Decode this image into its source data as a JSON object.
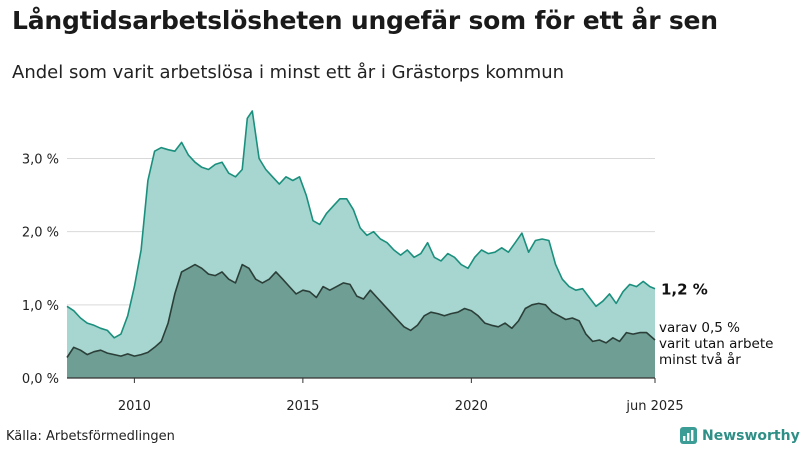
{
  "header": {
    "title": "Långtidsarbetslösheten ungefär som för ett år sen",
    "subtitle": "Andel som varit arbetslösa i minst ett år i Grästorps kommun"
  },
  "footer": {
    "source": "Källa: Arbetsförmedlingen",
    "brand": "Newsworthy"
  },
  "colors": {
    "upper_fill": "#a6d6cf",
    "upper_line": "#1b8f7d",
    "lower_fill": "#6f9e95",
    "lower_line": "#2b3f38",
    "grid": "#d9d9d9"
  },
  "chart_data": {
    "type": "area",
    "x_ticks": [
      {
        "x": 2010,
        "label": "2010"
      },
      {
        "x": 2015,
        "label": "2015"
      },
      {
        "x": 2020,
        "label": "2020"
      },
      {
        "x": 2025.45,
        "label": "jun 2025"
      }
    ],
    "y_ticks": [
      {
        "y": 0,
        "label": "0,0 %"
      },
      {
        "y": 1,
        "label": "1,0 %"
      },
      {
        "y": 2,
        "label": "2,0 %"
      },
      {
        "y": 3,
        "label": "3,0 %"
      }
    ],
    "xlim": [
      2008.0,
      2025.45
    ],
    "ylim": [
      0,
      3.8
    ],
    "grid": true,
    "end_label": "1,2 %",
    "note_lines": [
      "varav 0,5 %",
      "varit utan arbete",
      "minst två år"
    ],
    "series": [
      {
        "name": "minst ett år",
        "points": [
          [
            2008.0,
            0.98
          ],
          [
            2008.2,
            0.92
          ],
          [
            2008.4,
            0.82
          ],
          [
            2008.6,
            0.75
          ],
          [
            2008.8,
            0.72
          ],
          [
            2009.0,
            0.68
          ],
          [
            2009.2,
            0.65
          ],
          [
            2009.4,
            0.55
          ],
          [
            2009.6,
            0.6
          ],
          [
            2009.8,
            0.85
          ],
          [
            2010.0,
            1.25
          ],
          [
            2010.2,
            1.75
          ],
          [
            2010.4,
            2.7
          ],
          [
            2010.6,
            3.1
          ],
          [
            2010.8,
            3.15
          ],
          [
            2011.0,
            3.12
          ],
          [
            2011.2,
            3.1
          ],
          [
            2011.4,
            3.22
          ],
          [
            2011.6,
            3.05
          ],
          [
            2011.8,
            2.95
          ],
          [
            2012.0,
            2.88
          ],
          [
            2012.2,
            2.85
          ],
          [
            2012.4,
            2.92
          ],
          [
            2012.6,
            2.95
          ],
          [
            2012.8,
            2.8
          ],
          [
            2013.0,
            2.75
          ],
          [
            2013.2,
            2.85
          ],
          [
            2013.35,
            3.55
          ],
          [
            2013.5,
            3.65
          ],
          [
            2013.7,
            3.0
          ],
          [
            2013.9,
            2.85
          ],
          [
            2014.1,
            2.75
          ],
          [
            2014.3,
            2.65
          ],
          [
            2014.5,
            2.75
          ],
          [
            2014.7,
            2.7
          ],
          [
            2014.9,
            2.75
          ],
          [
            2015.1,
            2.5
          ],
          [
            2015.3,
            2.15
          ],
          [
            2015.5,
            2.1
          ],
          [
            2015.7,
            2.25
          ],
          [
            2015.9,
            2.35
          ],
          [
            2016.1,
            2.45
          ],
          [
            2016.3,
            2.45
          ],
          [
            2016.5,
            2.3
          ],
          [
            2016.7,
            2.05
          ],
          [
            2016.9,
            1.95
          ],
          [
            2017.1,
            2.0
          ],
          [
            2017.3,
            1.9
          ],
          [
            2017.5,
            1.85
          ],
          [
            2017.7,
            1.75
          ],
          [
            2017.9,
            1.68
          ],
          [
            2018.1,
            1.75
          ],
          [
            2018.3,
            1.65
          ],
          [
            2018.5,
            1.7
          ],
          [
            2018.7,
            1.85
          ],
          [
            2018.9,
            1.65
          ],
          [
            2019.1,
            1.6
          ],
          [
            2019.3,
            1.7
          ],
          [
            2019.5,
            1.65
          ],
          [
            2019.7,
            1.55
          ],
          [
            2019.9,
            1.5
          ],
          [
            2020.1,
            1.65
          ],
          [
            2020.3,
            1.75
          ],
          [
            2020.5,
            1.7
          ],
          [
            2020.7,
            1.72
          ],
          [
            2020.9,
            1.78
          ],
          [
            2021.1,
            1.72
          ],
          [
            2021.3,
            1.85
          ],
          [
            2021.5,
            1.98
          ],
          [
            2021.7,
            1.72
          ],
          [
            2021.9,
            1.88
          ],
          [
            2022.1,
            1.9
          ],
          [
            2022.3,
            1.88
          ],
          [
            2022.5,
            1.55
          ],
          [
            2022.7,
            1.35
          ],
          [
            2022.9,
            1.25
          ],
          [
            2023.1,
            1.2
          ],
          [
            2023.3,
            1.22
          ],
          [
            2023.5,
            1.1
          ],
          [
            2023.7,
            0.98
          ],
          [
            2023.9,
            1.05
          ],
          [
            2024.1,
            1.15
          ],
          [
            2024.3,
            1.02
          ],
          [
            2024.5,
            1.18
          ],
          [
            2024.7,
            1.28
          ],
          [
            2024.9,
            1.25
          ],
          [
            2025.1,
            1.32
          ],
          [
            2025.3,
            1.25
          ],
          [
            2025.45,
            1.22
          ]
        ]
      },
      {
        "name": "minst två år",
        "points": [
          [
            2008.0,
            0.28
          ],
          [
            2008.2,
            0.42
          ],
          [
            2008.4,
            0.38
          ],
          [
            2008.6,
            0.32
          ],
          [
            2008.8,
            0.36
          ],
          [
            2009.0,
            0.38
          ],
          [
            2009.2,
            0.34
          ],
          [
            2009.4,
            0.32
          ],
          [
            2009.6,
            0.3
          ],
          [
            2009.8,
            0.33
          ],
          [
            2010.0,
            0.3
          ],
          [
            2010.2,
            0.32
          ],
          [
            2010.4,
            0.35
          ],
          [
            2010.6,
            0.42
          ],
          [
            2010.8,
            0.5
          ],
          [
            2011.0,
            0.75
          ],
          [
            2011.2,
            1.15
          ],
          [
            2011.4,
            1.45
          ],
          [
            2011.6,
            1.5
          ],
          [
            2011.8,
            1.55
          ],
          [
            2012.0,
            1.5
          ],
          [
            2012.2,
            1.42
          ],
          [
            2012.4,
            1.4
          ],
          [
            2012.6,
            1.45
          ],
          [
            2012.8,
            1.35
          ],
          [
            2013.0,
            1.3
          ],
          [
            2013.2,
            1.55
          ],
          [
            2013.4,
            1.5
          ],
          [
            2013.6,
            1.35
          ],
          [
            2013.8,
            1.3
          ],
          [
            2014.0,
            1.35
          ],
          [
            2014.2,
            1.45
          ],
          [
            2014.4,
            1.35
          ],
          [
            2014.6,
            1.25
          ],
          [
            2014.8,
            1.15
          ],
          [
            2015.0,
            1.2
          ],
          [
            2015.2,
            1.18
          ],
          [
            2015.4,
            1.1
          ],
          [
            2015.6,
            1.25
          ],
          [
            2015.8,
            1.2
          ],
          [
            2016.0,
            1.25
          ],
          [
            2016.2,
            1.3
          ],
          [
            2016.4,
            1.28
          ],
          [
            2016.6,
            1.12
          ],
          [
            2016.8,
            1.08
          ],
          [
            2017.0,
            1.2
          ],
          [
            2017.2,
            1.1
          ],
          [
            2017.4,
            1.0
          ],
          [
            2017.6,
            0.9
          ],
          [
            2017.8,
            0.8
          ],
          [
            2018.0,
            0.7
          ],
          [
            2018.2,
            0.65
          ],
          [
            2018.4,
            0.72
          ],
          [
            2018.6,
            0.85
          ],
          [
            2018.8,
            0.9
          ],
          [
            2019.0,
            0.88
          ],
          [
            2019.2,
            0.85
          ],
          [
            2019.4,
            0.88
          ],
          [
            2019.6,
            0.9
          ],
          [
            2019.8,
            0.95
          ],
          [
            2020.0,
            0.92
          ],
          [
            2020.2,
            0.85
          ],
          [
            2020.4,
            0.75
          ],
          [
            2020.6,
            0.72
          ],
          [
            2020.8,
            0.7
          ],
          [
            2021.0,
            0.75
          ],
          [
            2021.2,
            0.68
          ],
          [
            2021.4,
            0.78
          ],
          [
            2021.6,
            0.95
          ],
          [
            2021.8,
            1.0
          ],
          [
            2022.0,
            1.02
          ],
          [
            2022.2,
            1.0
          ],
          [
            2022.4,
            0.9
          ],
          [
            2022.6,
            0.85
          ],
          [
            2022.8,
            0.8
          ],
          [
            2023.0,
            0.82
          ],
          [
            2023.2,
            0.78
          ],
          [
            2023.4,
            0.6
          ],
          [
            2023.6,
            0.5
          ],
          [
            2023.8,
            0.52
          ],
          [
            2024.0,
            0.48
          ],
          [
            2024.2,
            0.55
          ],
          [
            2024.4,
            0.5
          ],
          [
            2024.6,
            0.62
          ],
          [
            2024.8,
            0.6
          ],
          [
            2025.0,
            0.62
          ],
          [
            2025.2,
            0.62
          ],
          [
            2025.45,
            0.52
          ]
        ]
      }
    ]
  }
}
